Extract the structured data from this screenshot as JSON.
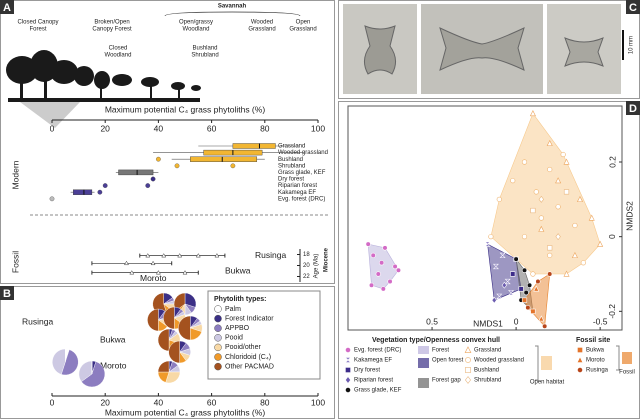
{
  "panel_labels": [
    "A",
    "B",
    "C",
    "D"
  ],
  "images": {
    "scale_label": "10 mm"
  },
  "chart_data": [
    {
      "type": "range",
      "group_label": "Savannah",
      "habitats": [
        [
          "Closed Canopy",
          "Forest"
        ],
        [
          "Broken/Open",
          "Canopy Forest"
        ],
        [
          "Closed",
          "Woodland"
        ],
        [
          "Open/grassy",
          "Woodland"
        ],
        [
          "Bushland",
          "Shrubland"
        ],
        [
          "Wooded",
          "Grassland"
        ],
        [
          "Open",
          "Grassland"
        ]
      ],
      "x_label": "Maximum potential C₄ grass phytoliths (%)",
      "xlim": [
        0,
        100
      ],
      "xticks": [
        0,
        20,
        40,
        60,
        80,
        100
      ],
      "modern_label": "Modern",
      "fossil_label": "Fossil",
      "modern": [
        {
          "name": "Grassland",
          "color": "#f2b632",
          "box": [
            55,
            68,
            78,
            84,
            93
          ],
          "points": []
        },
        {
          "name": "Wooded grassland",
          "color": "#f2b632",
          "box": [
            38,
            57,
            68,
            79,
            95
          ],
          "points": []
        },
        {
          "name": "Bushland",
          "color": "#f2b632",
          "box": [
            45,
            52,
            64,
            77,
            80
          ],
          "points": [
            40
          ]
        },
        {
          "name": "Shrubland",
          "color": "#f2b632",
          "points": [
            47,
            68
          ]
        },
        {
          "name": "Grass glade, KEF",
          "color": "#777777",
          "box": [
            24,
            25,
            32,
            38,
            40
          ],
          "points": []
        },
        {
          "name": "Dry forest",
          "color": "#3b2f86",
          "points": [
            38
          ]
        },
        {
          "name": "Riparian forest",
          "color": "#4b3f96",
          "points": [
            20,
            36
          ]
        },
        {
          "name": "Kakamega EF",
          "color": "#4b3f96",
          "box": [
            7,
            8,
            12,
            15,
            16
          ],
          "points": [
            18
          ]
        },
        {
          "name": "Evg. forest (DRC)",
          "color": "#bbbbbb",
          "points": [
            0
          ]
        }
      ],
      "fossil": [
        {
          "name": "Rusinga",
          "age": 18.2,
          "range": [
            33,
            65
          ],
          "points": [
            36,
            42,
            48,
            55,
            62
          ]
        },
        {
          "name": "Bukwa",
          "age": 19.6,
          "range": [
            15,
            45
          ],
          "points": [
            28,
            38
          ]
        },
        {
          "name": "Moroto",
          "age": 21.3,
          "range": [
            15,
            55
          ],
          "points": [
            30,
            40,
            50
          ]
        }
      ],
      "age_label": "Age (Ma)",
      "epoch_label": "Miocene",
      "agelim": [
        17,
        23
      ],
      "ageticks": [
        18,
        20,
        22
      ]
    },
    {
      "type": "pie-scatter",
      "x_label": "Maximum potential C₄ grass phytoliths (%)",
      "xlim": [
        0,
        100
      ],
      "xticks": [
        0,
        20,
        40,
        60,
        80,
        100
      ],
      "legend_title": "Phytolith types:",
      "types": [
        {
          "name": "Palm",
          "color": "#ffffff"
        },
        {
          "name": "Forest Indicator",
          "color": "#3b2f86"
        },
        {
          "name": "APPBO",
          "color": "#8c7dc0"
        },
        {
          "name": "Pooid",
          "color": "#cdc9e3"
        },
        {
          "name": "Pooid/other",
          "color": "#f8d9a6"
        },
        {
          "name": "Chloridoid (C₄)",
          "color": "#f09a2a"
        },
        {
          "name": "Other PACMAD",
          "color": "#a4521f"
        }
      ],
      "sites": [
        "Rusinga",
        "Bukwa",
        "Moroto"
      ],
      "pies": [
        {
          "site": "Rusinga",
          "x": 42,
          "values": [
            0,
            15,
            5,
            5,
            10,
            10,
            55
          ]
        },
        {
          "site": "Rusinga",
          "x": 50,
          "values": [
            0,
            30,
            10,
            10,
            10,
            5,
            35
          ]
        },
        {
          "site": "Rusinga",
          "x": 40,
          "values": [
            0,
            10,
            10,
            5,
            10,
            15,
            50
          ]
        },
        {
          "site": "Rusinga",
          "x": 46,
          "values": [
            0,
            10,
            5,
            5,
            15,
            15,
            50
          ]
        },
        {
          "site": "Rusinga",
          "x": 52,
          "values": [
            0,
            10,
            5,
            5,
            10,
            20,
            50
          ]
        },
        {
          "site": "Rusinga",
          "x": 44,
          "values": [
            0,
            5,
            5,
            5,
            15,
            20,
            50
          ]
        },
        {
          "site": "Bukwa",
          "x": 48,
          "values": [
            0,
            10,
            10,
            10,
            10,
            10,
            50
          ]
        },
        {
          "site": "Moroto",
          "x": 44,
          "values": [
            0,
            5,
            10,
            10,
            30,
            20,
            25
          ]
        },
        {
          "site": "Moroto",
          "x": 5,
          "values": [
            5,
            0,
            50,
            45,
            0,
            0,
            0
          ]
        },
        {
          "site": "Moroto",
          "x": 15,
          "values": [
            0,
            5,
            60,
            35,
            0,
            0,
            0
          ]
        }
      ]
    },
    {
      "type": "scatter",
      "x_label": "NMDS1",
      "y_label": "NMDS2",
      "xlim": [
        1.0,
        -0.63
      ],
      "xticks": [
        0.5,
        0,
        -0.5
      ],
      "ylim": [
        -0.25,
        0.35
      ],
      "yticks": [
        0.2,
        0,
        -0.2
      ],
      "legend_title": "Vegetation type/Openness convex hull",
      "fossil_title": "Fossil site",
      "hulls": [
        {
          "name": "Forest",
          "color": "#b9b1dc"
        },
        {
          "name": "Open forest",
          "color": "#3b2f86"
        },
        {
          "name": "Forest gap",
          "color": "#666666"
        },
        {
          "name": "Open habitat",
          "color": "#f7c98c"
        },
        {
          "name": "Fossil",
          "color": "#e8842e"
        }
      ],
      "series": [
        {
          "name": "Evg. forest (DRC)",
          "color": "#d36bc6",
          "marker": "circle",
          "filled": true,
          "hull": "Forest",
          "x": [
            0.88,
            0.85,
            0.8,
            0.78,
            0.82,
            0.75,
            0.72,
            0.86,
            0.79,
            0.7
          ],
          "y": [
            -0.02,
            -0.05,
            -0.07,
            -0.03,
            -0.1,
            -0.12,
            -0.08,
            -0.13,
            -0.14,
            -0.09
          ]
        },
        {
          "name": "Kakamega EF",
          "color": "#8a7cc4",
          "marker": "bowtie",
          "filled": true,
          "hull": "Open forest",
          "x": [
            0.17,
            0.12,
            0.08,
            0.03,
            0.1,
            0.05
          ],
          "y": [
            -0.02,
            -0.08,
            -0.05,
            -0.15,
            -0.16,
            -0.12
          ]
        },
        {
          "name": "Dry forest",
          "color": "#3d2c8a",
          "marker": "square",
          "filled": true,
          "hull": "Open forest",
          "x": [
            0.02,
            -0.03,
            0.0
          ],
          "y": [
            -0.1,
            -0.14,
            -0.06
          ]
        },
        {
          "name": "Riparian forest",
          "color": "#6c5cb0",
          "marker": "diamond",
          "filled": true,
          "hull": "Open forest",
          "x": [
            0.13,
            0.07
          ],
          "y": [
            -0.17,
            -0.13
          ]
        },
        {
          "name": "Grass glade, KEF",
          "color": "#111111",
          "marker": "circle",
          "filled": true,
          "hull": "Forest gap",
          "x": [
            0.0,
            -0.05,
            -0.08,
            -0.03,
            -0.1,
            -0.06
          ],
          "y": [
            -0.06,
            -0.09,
            -0.13,
            -0.17,
            -0.2,
            -0.15
          ]
        },
        {
          "name": "Grassland",
          "color": "#eca45c",
          "marker": "triangle",
          "filled": false,
          "hull": "Open habitat",
          "x": [
            -0.1,
            -0.2,
            -0.3,
            -0.38,
            -0.45,
            -0.25,
            -0.15,
            -0.35,
            -0.5,
            -0.3
          ],
          "y": [
            0.33,
            0.25,
            0.2,
            0.1,
            0.05,
            0.15,
            0.02,
            -0.05,
            -0.02,
            -0.1
          ]
        },
        {
          "name": "Wooded grassland",
          "color": "#eeb26e",
          "marker": "circle",
          "filled": false,
          "hull": "Open habitat",
          "x": [
            0.1,
            0.02,
            -0.05,
            -0.12,
            -0.2,
            -0.28,
            -0.15,
            -0.05,
            -0.25,
            -0.35,
            -0.1,
            -0.2,
            0.15,
            -0.4
          ],
          "y": [
            0.1,
            0.15,
            0.2,
            0.12,
            0.18,
            0.22,
            0.05,
            0.0,
            0.08,
            0.03,
            -0.1,
            -0.05,
            0.0,
            -0.07
          ]
        },
        {
          "name": "Bushland",
          "color": "#e9b780",
          "marker": "square",
          "filled": false,
          "hull": "Open habitat",
          "x": [
            -0.1,
            -0.2,
            -0.3
          ],
          "y": [
            0.07,
            -0.03,
            0.12
          ]
        },
        {
          "name": "Shrubland",
          "color": "#e9b780",
          "marker": "diamond",
          "filled": false,
          "hull": "Open habitat",
          "x": [
            -0.15,
            -0.25
          ],
          "y": [
            0.1,
            0.0
          ]
        },
        {
          "name": "Bukwa",
          "color": "#e4742a",
          "marker": "square",
          "filled": true,
          "hull": "Fossil",
          "x": [
            -0.05,
            -0.1
          ],
          "y": [
            -0.17,
            -0.2
          ]
        },
        {
          "name": "Moroto",
          "color": "#e4742a",
          "marker": "triangle",
          "filled": true,
          "hull": "Fossil",
          "x": [
            -0.12,
            -0.15
          ],
          "y": [
            -0.14,
            -0.22
          ]
        },
        {
          "name": "Rusinga",
          "color": "#b8461a",
          "marker": "circle",
          "filled": true,
          "hull": "Fossil",
          "x": [
            -0.07,
            -0.13,
            -0.17,
            -0.2
          ],
          "y": [
            -0.19,
            -0.12,
            -0.24,
            -0.1
          ]
        }
      ]
    }
  ]
}
